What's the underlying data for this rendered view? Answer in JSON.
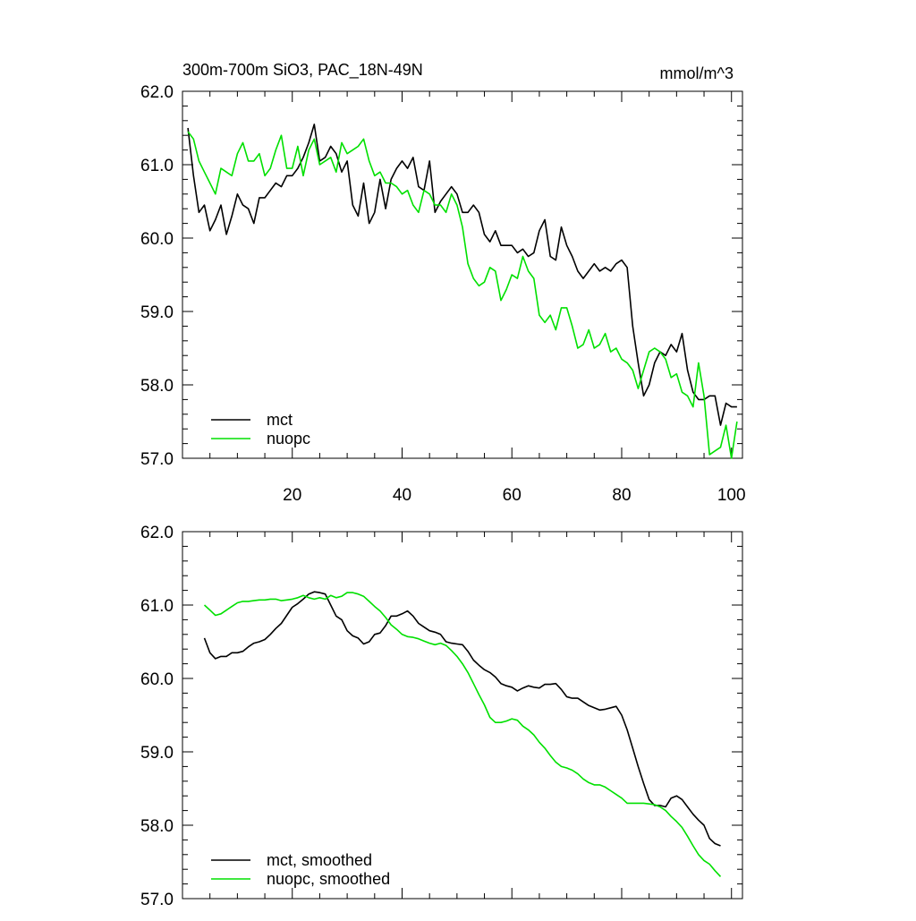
{
  "chart_data": [
    {
      "type": "line",
      "title": "300m-700m SiO3, PAC_18N-49N",
      "units": "mmol/m^3",
      "xlabel": "",
      "ylabel": "",
      "xlim": [
        0,
        102
      ],
      "ylim": [
        57.0,
        62.0
      ],
      "yticks": [
        "62.0",
        "61.0",
        "60.0",
        "59.0",
        "58.0",
        "57.0"
      ],
      "xticks": [
        "20",
        "40",
        "60",
        "80",
        "100"
      ],
      "legend_position": "bottom-left",
      "series": [
        {
          "name": "mct",
          "color": "#000000",
          "x": [
            1,
            2,
            3,
            4,
            5,
            6,
            7,
            8,
            9,
            10,
            11,
            12,
            13,
            14,
            15,
            16,
            17,
            18,
            19,
            20,
            21,
            22,
            23,
            24,
            25,
            26,
            27,
            28,
            29,
            30,
            31,
            32,
            33,
            34,
            35,
            36,
            37,
            38,
            39,
            40,
            41,
            42,
            43,
            44,
            45,
            46,
            47,
            48,
            49,
            50,
            51,
            52,
            53,
            54,
            55,
            56,
            57,
            58,
            59,
            60,
            61,
            62,
            63,
            64,
            65,
            66,
            67,
            68,
            69,
            70,
            71,
            72,
            73,
            74,
            75,
            76,
            77,
            78,
            79,
            80,
            81,
            82,
            83,
            84,
            85,
            86,
            87,
            88,
            89,
            90,
            91,
            92,
            93,
            94,
            95,
            96,
            97,
            98,
            99,
            100,
            101
          ],
          "values": [
            61.5,
            60.85,
            60.35,
            60.45,
            60.1,
            60.25,
            60.45,
            60.05,
            60.3,
            60.6,
            60.45,
            60.4,
            60.2,
            60.55,
            60.55,
            60.65,
            60.75,
            60.7,
            60.85,
            60.85,
            60.95,
            61.1,
            61.3,
            61.55,
            61.05,
            61.1,
            61.25,
            61.15,
            60.9,
            61.05,
            60.45,
            60.3,
            60.75,
            60.2,
            60.35,
            60.8,
            60.4,
            60.8,
            60.95,
            61.05,
            60.95,
            61.1,
            60.7,
            60.65,
            61.05,
            60.35,
            60.5,
            60.6,
            60.7,
            60.6,
            60.35,
            60.35,
            60.45,
            60.35,
            60.05,
            59.95,
            60.1,
            59.9,
            59.9,
            59.9,
            59.8,
            59.85,
            59.75,
            59.8,
            60.1,
            60.25,
            59.75,
            59.7,
            60.15,
            59.9,
            59.75,
            59.55,
            59.45,
            59.55,
            59.65,
            59.55,
            59.6,
            59.55,
            59.65,
            59.7,
            59.6,
            58.8,
            58.3,
            57.85,
            58.0,
            58.3,
            58.45,
            58.4,
            58.55,
            58.45,
            58.7,
            58.2,
            57.9,
            57.8,
            57.8,
            57.85,
            57.85,
            57.45,
            57.75,
            57.7,
            57.7
          ]
        },
        {
          "name": "nuopc",
          "color": "#00e000",
          "x": [
            1,
            2,
            3,
            4,
            5,
            6,
            7,
            8,
            9,
            10,
            11,
            12,
            13,
            14,
            15,
            16,
            17,
            18,
            19,
            20,
            21,
            22,
            23,
            24,
            25,
            26,
            27,
            28,
            29,
            30,
            31,
            32,
            33,
            34,
            35,
            36,
            37,
            38,
            39,
            40,
            41,
            42,
            43,
            44,
            45,
            46,
            47,
            48,
            49,
            50,
            51,
            52,
            53,
            54,
            55,
            56,
            57,
            58,
            59,
            60,
            61,
            62,
            63,
            64,
            65,
            66,
            67,
            68,
            69,
            70,
            71,
            72,
            73,
            74,
            75,
            76,
            77,
            78,
            79,
            80,
            81,
            82,
            83,
            84,
            85,
            86,
            87,
            88,
            89,
            90,
            91,
            92,
            93,
            94,
            95,
            96,
            97,
            98,
            99,
            100,
            101
          ],
          "values": [
            61.45,
            61.35,
            61.05,
            60.9,
            60.75,
            60.6,
            60.95,
            60.9,
            60.85,
            61.15,
            61.3,
            61.05,
            61.05,
            61.15,
            60.85,
            60.95,
            61.2,
            61.4,
            60.95,
            60.95,
            61.25,
            60.85,
            61.2,
            61.35,
            61.0,
            61.05,
            61.1,
            60.9,
            61.3,
            61.15,
            61.2,
            61.25,
            61.35,
            61.05,
            60.85,
            60.9,
            60.75,
            60.75,
            60.7,
            60.6,
            60.65,
            60.45,
            60.35,
            60.65,
            60.6,
            60.45,
            60.45,
            60.35,
            60.6,
            60.45,
            60.15,
            59.65,
            59.45,
            59.35,
            59.4,
            59.6,
            59.55,
            59.15,
            59.3,
            59.5,
            59.45,
            59.75,
            59.55,
            59.45,
            58.95,
            58.85,
            58.95,
            58.75,
            59.05,
            59.05,
            58.8,
            58.5,
            58.55,
            58.75,
            58.5,
            58.55,
            58.7,
            58.45,
            58.5,
            58.35,
            58.3,
            58.2,
            57.95,
            58.2,
            58.45,
            58.5,
            58.45,
            58.35,
            58.1,
            58.15,
            57.9,
            57.85,
            57.7,
            58.3,
            57.85,
            57.05,
            57.1,
            57.15,
            57.45,
            57.0,
            57.5
          ]
        }
      ]
    },
    {
      "type": "line",
      "title": "",
      "xlabel": "",
      "ylabel": "",
      "xlim": [
        0,
        102
      ],
      "ylim": [
        57.0,
        62.0
      ],
      "yticks": [
        "62.0",
        "61.0",
        "60.0",
        "59.0",
        "58.0",
        "57.0"
      ],
      "legend_position": "bottom-left",
      "series": [
        {
          "name": "mct, smoothed",
          "color": "#000000",
          "x": [
            4,
            5,
            6,
            7,
            8,
            9,
            10,
            11,
            12,
            13,
            14,
            15,
            16,
            17,
            18,
            19,
            20,
            21,
            22,
            23,
            24,
            25,
            26,
            27,
            28,
            29,
            30,
            31,
            32,
            33,
            34,
            35,
            36,
            37,
            38,
            39,
            40,
            41,
            42,
            43,
            44,
            45,
            46,
            47,
            48,
            49,
            50,
            51,
            52,
            53,
            54,
            55,
            56,
            57,
            58,
            59,
            60,
            61,
            62,
            63,
            64,
            65,
            66,
            67,
            68,
            69,
            70,
            71,
            72,
            73,
            74,
            75,
            76,
            77,
            78,
            79,
            80,
            81,
            82,
            83,
            84,
            85,
            86,
            87,
            88,
            89,
            90,
            91,
            92,
            93,
            94,
            95,
            96,
            97,
            98
          ],
          "values": [
            60.55,
            60.35,
            60.27,
            60.3,
            60.3,
            60.35,
            60.35,
            60.37,
            60.43,
            60.48,
            60.5,
            60.53,
            60.6,
            60.68,
            60.75,
            60.86,
            60.97,
            61.02,
            61.08,
            61.15,
            61.18,
            61.17,
            61.15,
            61.0,
            60.85,
            60.8,
            60.65,
            60.58,
            60.55,
            60.47,
            60.5,
            60.6,
            60.62,
            60.72,
            60.85,
            60.85,
            60.88,
            60.92,
            60.85,
            60.75,
            60.7,
            60.65,
            60.63,
            60.6,
            60.5,
            60.48,
            60.47,
            60.46,
            60.37,
            60.25,
            60.18,
            60.12,
            60.08,
            60.02,
            59.93,
            59.9,
            59.88,
            59.83,
            59.87,
            59.9,
            59.88,
            59.87,
            59.92,
            59.92,
            59.93,
            59.85,
            59.75,
            59.73,
            59.73,
            59.68,
            59.63,
            59.6,
            59.57,
            59.58,
            59.6,
            59.62,
            59.5,
            59.3,
            59.05,
            58.8,
            58.57,
            58.35,
            58.27,
            58.27,
            58.25,
            58.37,
            58.4,
            58.35,
            58.25,
            58.15,
            58.07,
            58.0,
            57.82,
            57.75,
            57.72
          ]
        },
        {
          "name": "nuopc, smoothed",
          "color": "#00e000",
          "x": [
            4,
            5,
            6,
            7,
            8,
            9,
            10,
            11,
            12,
            13,
            14,
            15,
            16,
            17,
            18,
            19,
            20,
            21,
            22,
            23,
            24,
            25,
            26,
            27,
            28,
            29,
            30,
            31,
            32,
            33,
            34,
            35,
            36,
            37,
            38,
            39,
            40,
            41,
            42,
            43,
            44,
            45,
            46,
            47,
            48,
            49,
            50,
            51,
            52,
            53,
            54,
            55,
            56,
            57,
            58,
            59,
            60,
            61,
            62,
            63,
            64,
            65,
            66,
            67,
            68,
            69,
            70,
            71,
            72,
            73,
            74,
            75,
            76,
            77,
            78,
            79,
            80,
            81,
            82,
            83,
            84,
            85,
            86,
            87,
            88,
            89,
            90,
            91,
            92,
            93,
            94,
            95,
            96,
            97,
            98
          ],
          "values": [
            61.0,
            60.93,
            60.86,
            60.88,
            60.93,
            60.98,
            61.03,
            61.05,
            61.05,
            61.06,
            61.07,
            61.07,
            61.08,
            61.08,
            61.06,
            61.07,
            61.08,
            61.1,
            61.13,
            61.1,
            61.08,
            61.1,
            61.08,
            61.13,
            61.1,
            61.12,
            61.17,
            61.17,
            61.15,
            61.12,
            61.05,
            60.98,
            60.92,
            60.83,
            60.73,
            60.67,
            60.6,
            60.57,
            60.56,
            60.54,
            60.51,
            60.48,
            60.46,
            60.48,
            60.45,
            60.38,
            60.3,
            60.2,
            60.08,
            59.93,
            59.78,
            59.64,
            59.47,
            59.4,
            59.4,
            59.42,
            59.45,
            59.43,
            59.35,
            59.3,
            59.23,
            59.13,
            59.05,
            58.95,
            58.86,
            58.8,
            58.78,
            58.75,
            58.7,
            58.63,
            58.58,
            58.55,
            58.55,
            58.52,
            58.47,
            58.42,
            58.37,
            58.3,
            58.3,
            58.3,
            58.3,
            58.29,
            58.28,
            58.25,
            58.2,
            58.12,
            58.05,
            57.97,
            57.85,
            57.72,
            57.6,
            57.52,
            57.47,
            57.38,
            57.3
          ]
        }
      ]
    }
  ]
}
